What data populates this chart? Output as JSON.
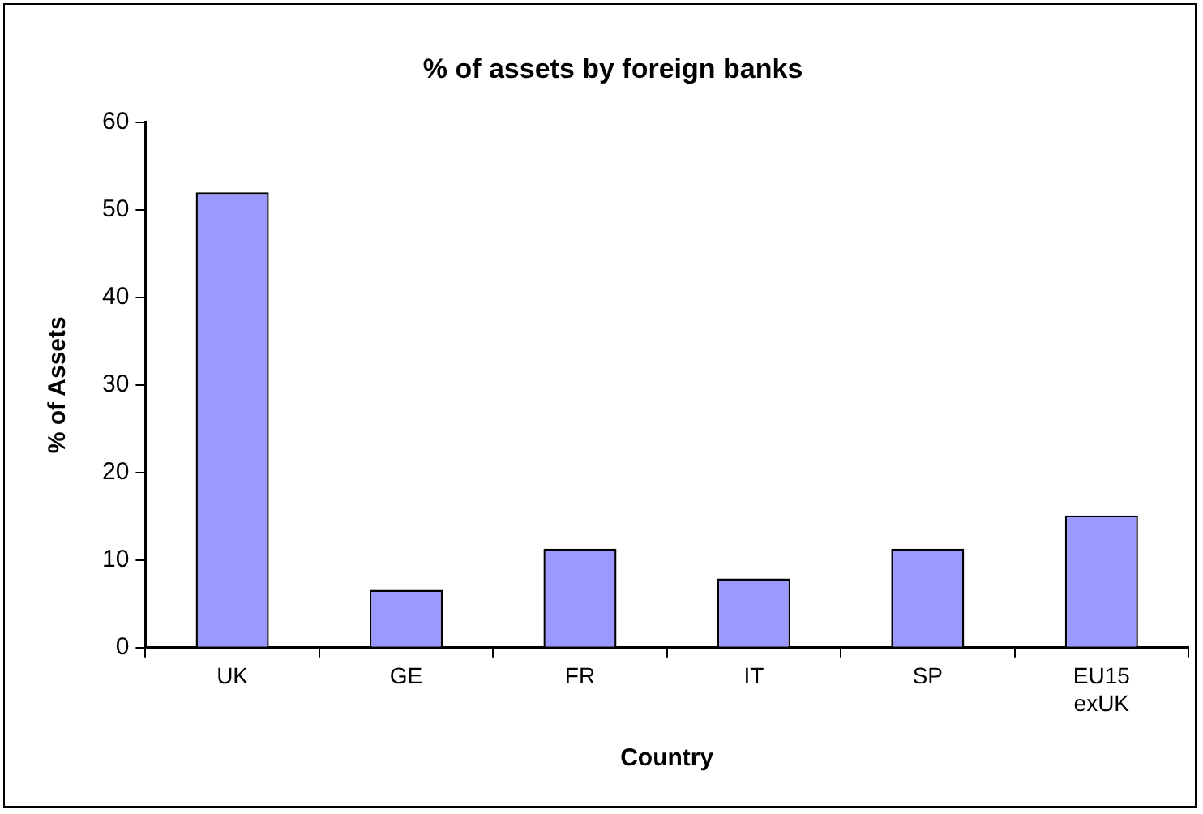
{
  "chart_data": {
    "type": "bar",
    "title": "% of assets by foreign banks",
    "xlabel": "Country",
    "ylabel": "% of Assets",
    "categories": [
      "UK",
      "GE",
      "FR",
      "IT",
      "SP",
      "EU15 exUK"
    ],
    "values": [
      52,
      6.6,
      11.3,
      7.9,
      11.3,
      15.1
    ],
    "color": "#9999ff",
    "ylim": [
      0,
      60
    ],
    "yticks": [
      0,
      10,
      20,
      30,
      40,
      50,
      60
    ],
    "grid": false,
    "legend": false
  }
}
